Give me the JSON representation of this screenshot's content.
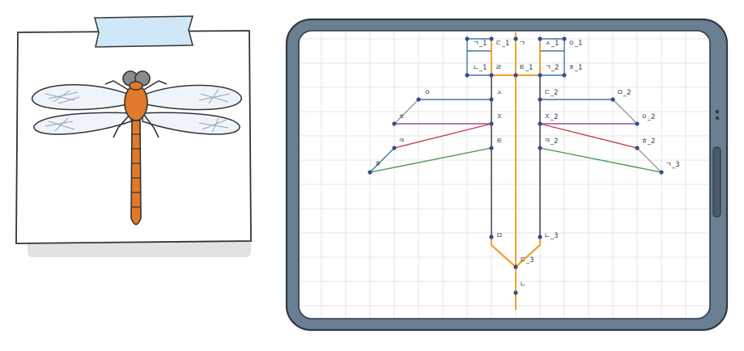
{
  "colors": {
    "tablet_frame": "#6b7f92",
    "tablet_frame_dark": "#4a5a6a",
    "screen_bg": "#ffffff",
    "grid": "#dcdcdc",
    "tape": "#cfe7f7",
    "axis_orange": "#f0a030",
    "blue_line": "#3e76a8",
    "purple_line": "#9b4f9b",
    "red_line": "#c8404e",
    "green_line": "#3f9a4f",
    "point": "#3b4a8c",
    "dragonfly_body": "#e07a2a",
    "dragonfly_eye": "#8a8a8a",
    "wing_fill": "#eef4fa"
  },
  "illustration": {
    "subject": "dragonfly",
    "icon": "dragonfly-illustration"
  },
  "diagram": {
    "labels": {
      "g1": "ㄱ_1",
      "d1": "ㄷ_1",
      "g": "ㄱ",
      "s1": "ㅅ_1",
      "o1": "ㅇ_1",
      "n1": "ㄴ_1",
      "r": "ㄹ",
      "t1": "ㅌ_1",
      "g2": "ㄱ_2",
      "ch1": "ㅊ_1",
      "o": "ㅇ",
      "s": "ㅅ",
      "d2": "ㄷ_2",
      "m2": "ㅁ_2",
      "j": "ㅈ",
      "j2": "ㅈ_2",
      "o2": "ㅇ_2",
      "k": "ㅋ",
      "t": "ㅌ",
      "k2": "ㅋ_2",
      "h2": "ㅎ_2",
      "h": "ㅎ",
      "g3": "ㄱ_3",
      "ch": "ㅊ",
      "m": "ㅁ",
      "n3": "ㄴ_3",
      "d3": "ㄷ_3",
      "n": "ㄴ"
    }
  }
}
